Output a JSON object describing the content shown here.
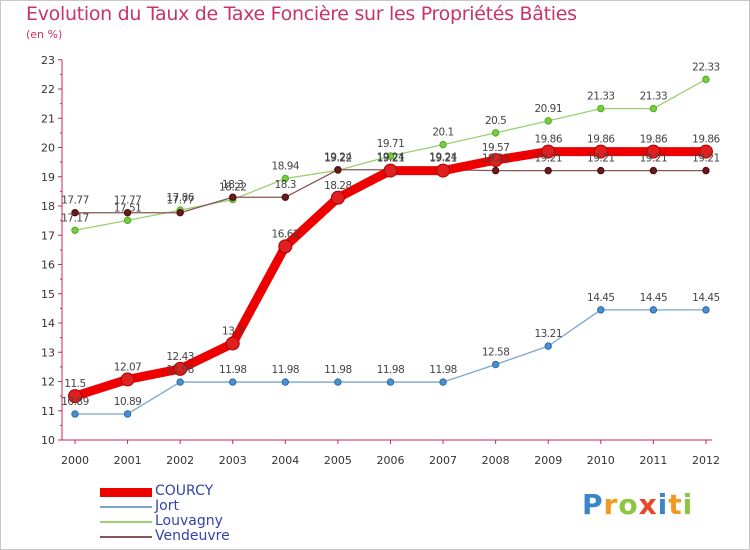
{
  "title": "Evolution du Taux de Taxe Foncière sur les Propriétés Bâties",
  "subtitle": "(en %)",
  "logo": {
    "text": "Proxiti",
    "letter_colors": [
      "#3a86c8",
      "#f39a1e",
      "#8cc63f",
      "#e8462b",
      "#3a86c8",
      "#f39a1e",
      "#8cc63f"
    ]
  },
  "chart_data": {
    "type": "line",
    "categories": [
      "2000",
      "2001",
      "2002",
      "2003",
      "2004",
      "2005",
      "2006",
      "2007",
      "2008",
      "2009",
      "2010",
      "2011",
      "2012"
    ],
    "ylim": [
      10,
      23
    ],
    "yticks": [
      "10",
      "11",
      "12",
      "13",
      "14",
      "15",
      "16",
      "17",
      "18",
      "19",
      "20",
      "21",
      "22",
      "23"
    ],
    "grid": false,
    "series": [
      {
        "name": "COURCY",
        "color": "#ee0000",
        "values": [
          11.5,
          12.07,
          12.43,
          13.3,
          16.62,
          18.28,
          19.21,
          19.21,
          19.57,
          19.86,
          19.86,
          19.86,
          19.86
        ],
        "labels": [
          "11.5",
          "12.07",
          "12.43",
          "13.3",
          "16.62",
          "18.28",
          "19.21",
          "19.21",
          "19.57",
          "19.86",
          "19.86",
          "19.86",
          "19.86"
        ]
      },
      {
        "name": "Jort",
        "color": "#6699cc",
        "values": [
          10.89,
          10.89,
          11.98,
          11.98,
          11.98,
          11.98,
          11.98,
          11.98,
          12.58,
          13.21,
          14.45,
          14.45,
          14.45
        ],
        "labels": [
          "10.89",
          "10.89",
          "11.98",
          "11.98",
          "11.98",
          "11.98",
          "11.98",
          "11.98",
          "12.58",
          "13.21",
          "14.45",
          "14.45",
          "14.45"
        ]
      },
      {
        "name": "Louvagny",
        "color": "#88cc55",
        "values": [
          17.17,
          17.51,
          17.86,
          18.22,
          18.94,
          19.22,
          19.71,
          20.1,
          20.5,
          20.91,
          21.33,
          21.33,
          22.33
        ],
        "labels": [
          "17.17",
          "17.51",
          "17.86",
          "18.22",
          "18.94",
          "19.22",
          "19.71",
          "20.1",
          "20.5",
          "20.91",
          "21.33",
          "21.33",
          "22.33"
        ]
      },
      {
        "name": "Vendeuvre",
        "color": "#772222",
        "values": [
          17.77,
          17.77,
          17.77,
          18.3,
          18.3,
          19.24,
          19.24,
          19.24,
          19.21,
          19.21,
          19.21,
          19.21,
          19.21
        ],
        "labels": [
          "17.77",
          "17.77",
          "17.77",
          "18.3",
          "18.3",
          "19.24",
          "19.24",
          "19.24",
          "19.21",
          "19.21",
          "19.21",
          "19.21",
          "19.21"
        ]
      }
    ]
  }
}
